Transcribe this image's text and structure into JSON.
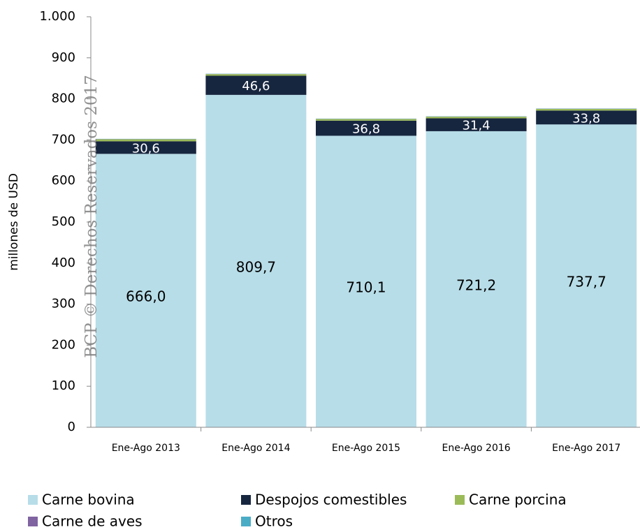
{
  "chart_data": {
    "type": "stacked_bar",
    "y_axis_label": "millones de  USD",
    "watermark": "BCP © Derechos Reservados 2017",
    "categories": [
      "Ene-Ago 2013",
      "Ene-Ago 2014",
      "Ene-Ago 2015",
      "Ene-Ago 2016",
      "Ene-Ago 2017"
    ],
    "series": [
      {
        "name": "Carne bovina",
        "color": "#b7dde8",
        "values": [
          666.0,
          809.7,
          710.1,
          721.2,
          737.7
        ],
        "value_labels": [
          "666,0",
          "809,7",
          "710,1",
          "721,2",
          "737,7"
        ]
      },
      {
        "name": "Despojos comestibles",
        "color": "#17263f",
        "values": [
          30.6,
          46.6,
          36.8,
          31.4,
          33.8
        ],
        "value_labels": [
          "30,6",
          "46,6",
          "36,8",
          "31,4",
          "33,8"
        ]
      },
      {
        "name": "Carne porcina",
        "color": "#9bbb59",
        "values": [
          5,
          4,
          4,
          4,
          4
        ]
      },
      {
        "name": "Carne de aves",
        "color": "#8064a2",
        "values": [
          0.5,
          0.5,
          0.5,
          0.5,
          0.5
        ]
      },
      {
        "name": "Otros",
        "color": "#4bacc6",
        "values": [
          0.5,
          0.5,
          0.5,
          0.5,
          0.5
        ]
      }
    ],
    "ylim": [
      0,
      1000
    ],
    "yticks": [
      0,
      100,
      200,
      300,
      400,
      500,
      600,
      700,
      800,
      900,
      {
        "value": 1000,
        "label": "1.000"
      }
    ]
  }
}
